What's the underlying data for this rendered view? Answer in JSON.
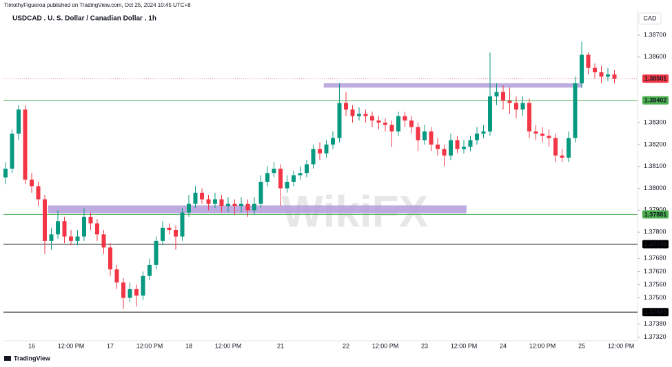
{
  "chart_data": {
    "type": "candlestick",
    "publisher": "TimothyFigueroa published on TradingView.com, Oct 25, 2024 10:45 UTC+8",
    "title": "USDCAD . U. S. Dollar / Canadian Dollar . 1h",
    "currency": "CAD",
    "watermark": "WikiFX",
    "brand": "TradingView",
    "up_color": "#089981",
    "down_color": "#f23645",
    "categories": [
      null,
      null,
      null,
      null,
      "16",
      null,
      null,
      null,
      null,
      null,
      "12:00 PM",
      null,
      null,
      null,
      null,
      null,
      "17",
      null,
      null,
      null,
      null,
      null,
      "12:00 PM",
      null,
      null,
      null,
      null,
      null,
      "18",
      null,
      null,
      null,
      null,
      null,
      "12:00 PM",
      null,
      null,
      null,
      null,
      null,
      null,
      null,
      "21",
      null,
      null,
      null,
      null,
      null,
      null,
      null,
      null,
      null,
      "22",
      null,
      null,
      null,
      null,
      null,
      "12:00 PM",
      null,
      null,
      null,
      null,
      null,
      "23",
      null,
      null,
      null,
      null,
      null,
      "12:00 PM",
      null,
      null,
      null,
      null,
      null,
      "24",
      null,
      null,
      null,
      null,
      null,
      "12:00 PM",
      null,
      null,
      null,
      null,
      null,
      "25",
      null,
      null,
      null,
      null,
      null,
      "12:00 PM"
    ],
    "open": [
      1.3805,
      1.3809,
      1.3825,
      1.3836,
      1.3804,
      1.3801,
      1.3795,
      1.3776,
      1.3779,
      1.3785,
      1.3778,
      1.3776,
      1.3778,
      1.3787,
      1.3784,
      1.3779,
      1.3773,
      1.3763,
      1.3757,
      1.375,
      1.3754,
      1.3751,
      1.376,
      1.3765,
      1.3776,
      1.3782,
      1.3781,
      1.3778,
      1.3789,
      1.3793,
      1.3798,
      1.3795,
      1.3793,
      1.3795,
      1.3792,
      1.3793,
      1.3792,
      1.3793,
      1.379,
      1.3793,
      1.3803,
      1.3807,
      1.3809,
      1.38,
      1.3803,
      1.3806,
      1.3807,
      1.3811,
      1.3818,
      1.3816,
      1.382,
      1.3823,
      1.3839,
      1.3836,
      1.3833,
      1.3834,
      1.3833,
      1.3831,
      1.383,
      1.3829,
      1.3826,
      1.3833,
      1.3831,
      1.3828,
      1.3822,
      1.3826,
      1.382,
      1.3818,
      1.3815,
      1.3822,
      1.3818,
      1.3819,
      1.3822,
      1.3825,
      1.3826,
      1.3842,
      1.3844,
      1.384,
      1.3839,
      1.3836,
      1.3839,
      1.3826,
      1.3825,
      1.3824,
      1.3823,
      1.3815,
      1.3814,
      1.3823,
      1.3848,
      1.3861,
      1.3855,
      1.3853,
      1.3851,
      1.3852,
      null
    ],
    "close": [
      1.3809,
      1.3825,
      1.3836,
      1.3804,
      1.3801,
      1.3795,
      1.3776,
      1.3779,
      1.3785,
      1.3778,
      1.3776,
      1.3778,
      1.3787,
      1.3784,
      1.3779,
      1.3773,
      1.3763,
      1.3757,
      1.375,
      1.3754,
      1.3751,
      1.376,
      1.3765,
      1.3776,
      1.3782,
      1.3781,
      1.3778,
      1.3789,
      1.3793,
      1.3798,
      1.3795,
      1.3793,
      1.3795,
      1.3792,
      1.3793,
      1.3792,
      1.3793,
      1.379,
      1.3793,
      1.3803,
      1.3807,
      1.3809,
      1.38,
      1.3803,
      1.3806,
      1.3807,
      1.3811,
      1.3818,
      1.3816,
      1.382,
      1.3823,
      1.3839,
      1.3836,
      1.3833,
      1.3834,
      1.3833,
      1.3831,
      1.383,
      1.3829,
      1.3826,
      1.3833,
      1.3831,
      1.3828,
      1.3822,
      1.3826,
      1.382,
      1.3818,
      1.3815,
      1.3822,
      1.3818,
      1.3819,
      1.3822,
      1.3825,
      1.3826,
      1.3842,
      1.3844,
      1.384,
      1.3839,
      1.3836,
      1.3839,
      1.3826,
      1.3825,
      1.3824,
      1.3823,
      1.3815,
      1.3814,
      1.3823,
      1.3848,
      1.3861,
      1.3855,
      1.3853,
      1.3851,
      1.3852,
      1.385,
      null
    ],
    "high": [
      1.3812,
      1.3827,
      1.3838,
      1.3838,
      1.3807,
      1.3803,
      1.3797,
      1.3782,
      1.379,
      1.3787,
      1.3781,
      1.3781,
      1.3791,
      1.3789,
      1.3786,
      1.3781,
      1.3775,
      1.3765,
      1.3759,
      1.3757,
      1.3756,
      1.3762,
      1.3768,
      1.3778,
      1.3785,
      1.3784,
      1.3783,
      1.3791,
      1.3797,
      1.3801,
      1.38,
      1.3797,
      1.3798,
      1.3797,
      1.3796,
      1.3795,
      1.3796,
      1.3795,
      1.3796,
      1.3806,
      1.381,
      1.3812,
      1.3811,
      1.3806,
      1.3808,
      1.381,
      1.3813,
      1.382,
      1.3821,
      1.3822,
      1.3826,
      1.3848,
      1.3844,
      1.3838,
      1.3837,
      1.3836,
      1.3835,
      1.3833,
      1.3832,
      1.3831,
      1.3835,
      1.3835,
      1.3833,
      1.383,
      1.3829,
      1.3828,
      1.3823,
      1.382,
      1.3825,
      1.3824,
      1.3822,
      1.3824,
      1.3828,
      1.3829,
      1.3862,
      1.3848,
      1.3847,
      1.3846,
      1.3842,
      1.3842,
      1.3841,
      1.3829,
      1.3828,
      1.3827,
      1.3825,
      1.3818,
      1.3826,
      1.3851,
      1.3867,
      1.3862,
      1.3857,
      1.3856,
      1.3855,
      1.3854,
      null
    ],
    "low": [
      1.3802,
      1.3807,
      1.3822,
      1.3802,
      1.3798,
      1.3792,
      1.377,
      1.3772,
      1.3777,
      1.3775,
      1.3774,
      1.3774,
      1.3776,
      1.3781,
      1.3776,
      1.377,
      1.376,
      1.3754,
      1.3745,
      1.3748,
      1.3746,
      1.3749,
      1.3758,
      1.3763,
      1.3774,
      1.3779,
      1.3772,
      1.3776,
      1.3787,
      1.3791,
      1.3793,
      1.379,
      1.3791,
      1.3789,
      1.3789,
      1.3788,
      1.3789,
      1.3787,
      1.3788,
      1.3791,
      1.3801,
      1.3805,
      1.3792,
      1.3798,
      1.3801,
      1.3804,
      1.3805,
      1.3809,
      1.3813,
      1.3814,
      1.3818,
      1.3821,
      1.3833,
      1.383,
      1.3831,
      1.383,
      1.3828,
      1.3827,
      1.3826,
      1.3819,
      1.3824,
      1.3828,
      1.3825,
      1.3817,
      1.382,
      1.3817,
      1.3815,
      1.381,
      1.3813,
      1.3816,
      1.3816,
      1.3817,
      1.382,
      1.3823,
      1.3824,
      1.3838,
      1.3836,
      1.3834,
      1.3832,
      1.3833,
      1.3823,
      1.3822,
      1.3821,
      1.3819,
      1.3812,
      1.3812,
      1.3812,
      1.3821,
      1.3846,
      1.3852,
      1.385,
      1.3848,
      1.3849,
      1.3848,
      null
    ],
    "ylim": [
      1.3731,
      1.38835
    ],
    "yticks": [
      {
        "value": 1.387,
        "label": "1.38700"
      },
      {
        "value": 1.386,
        "label": "1.38600"
      },
      {
        "value": 1.383,
        "label": "1.38300"
      },
      {
        "value": 1.382,
        "label": "1.38200"
      },
      {
        "value": 1.381,
        "label": "1.38100"
      },
      {
        "value": 1.38,
        "label": "1.38000"
      },
      {
        "value": 1.379,
        "label": "1.37900"
      },
      {
        "value": 1.378,
        "label": "1.37800"
      },
      {
        "value": 1.3768,
        "label": "1.37680"
      },
      {
        "value": 1.3762,
        "label": "1.37620"
      },
      {
        "value": 1.3756,
        "label": "1.37560"
      },
      {
        "value": 1.375,
        "label": "1.37500"
      },
      {
        "value": 1.3738,
        "label": "1.37380"
      },
      {
        "value": 1.3732,
        "label": "1.37320"
      }
    ],
    "levels": [
      {
        "value": 1.38501,
        "color": "#f23645",
        "style": "dotted"
      },
      {
        "value": 1.38402,
        "color": "#4caf50",
        "style": "solid"
      },
      {
        "value": 1.37881,
        "color": "#4caf50",
        "style": "solid"
      },
      {
        "value": 1.37745,
        "color": "#000000",
        "style": "solid"
      },
      {
        "value": 1.37435,
        "color": "#000000",
        "style": "solid"
      }
    ],
    "zones": [
      {
        "ylim": [
          1.3846,
          1.3848
        ],
        "xrange": [
          48.6,
          88.1
        ],
        "color": "#b39ddb"
      },
      {
        "ylim": [
          1.37886,
          1.37922
        ],
        "xrange": [
          6.5,
          70.4
        ],
        "color": "#b39ddb"
      }
    ]
  }
}
